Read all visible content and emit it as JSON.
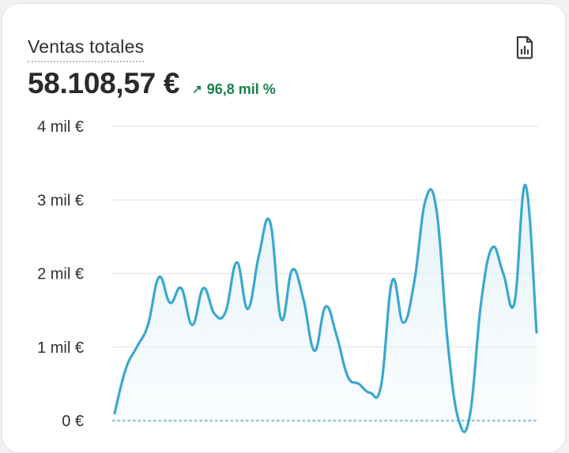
{
  "card": {
    "title": "Ventas totales",
    "value": "58.108,57 €",
    "delta_text": "96,8 mil %",
    "delta_icon": "arrow-up-right-icon",
    "report_icon": "report-icon"
  },
  "colors": {
    "line": "#3aa8cf",
    "fill": "#e4f2f8",
    "grid": "#e6e6e6",
    "baseline": "#7cc3dd",
    "delta": "#1a7f4e"
  },
  "chart_data": {
    "type": "area",
    "title": "",
    "xlabel": "",
    "ylabel": "",
    "ylim": [
      0,
      4000
    ],
    "yticks": [
      0,
      1000,
      2000,
      3000,
      4000
    ],
    "ytick_labels": [
      "0 €",
      "1 mil €",
      "2 mil €",
      "3 mil €",
      "4 mil €"
    ],
    "grid": true,
    "legend": "none",
    "x": [
      0,
      1,
      2,
      3,
      4,
      5,
      6,
      7,
      8,
      9,
      10,
      11,
      12,
      13,
      14,
      15,
      16,
      17,
      18,
      19,
      20,
      21,
      22,
      23,
      24,
      25,
      26,
      27,
      28,
      29,
      30,
      31,
      32,
      33,
      34,
      35,
      36,
      37,
      38,
      39,
      40,
      41,
      42,
      43,
      44,
      45,
      46,
      47,
      48,
      49,
      50,
      51,
      52,
      53,
      54,
      55,
      56,
      57,
      58,
      59,
      60,
      61,
      62,
      63,
      64,
      65,
      66,
      67,
      68,
      69
    ],
    "series": [
      {
        "values": [
          100,
          700,
          1000,
          1300,
          1950,
          1600,
          1800,
          1300,
          1800,
          1450,
          1480,
          2150,
          1520,
          2250,
          2700,
          1380,
          2050,
          1650,
          950,
          1550,
          1150,
          600,
          500,
          380,
          480,
          1900,
          1330,
          1900,
          3000,
          2850,
          1050,
          0,
          80,
          1600,
          2350,
          2000,
          1600,
          3200,
          1200,
          null,
          null,
          null,
          null,
          null,
          null,
          null,
          null,
          null,
          null,
          null,
          null,
          null,
          null,
          null,
          null,
          null,
          null,
          null,
          null,
          null,
          null,
          null,
          null,
          null,
          null,
          null,
          null,
          null,
          null,
          null
        ]
      }
    ]
  }
}
